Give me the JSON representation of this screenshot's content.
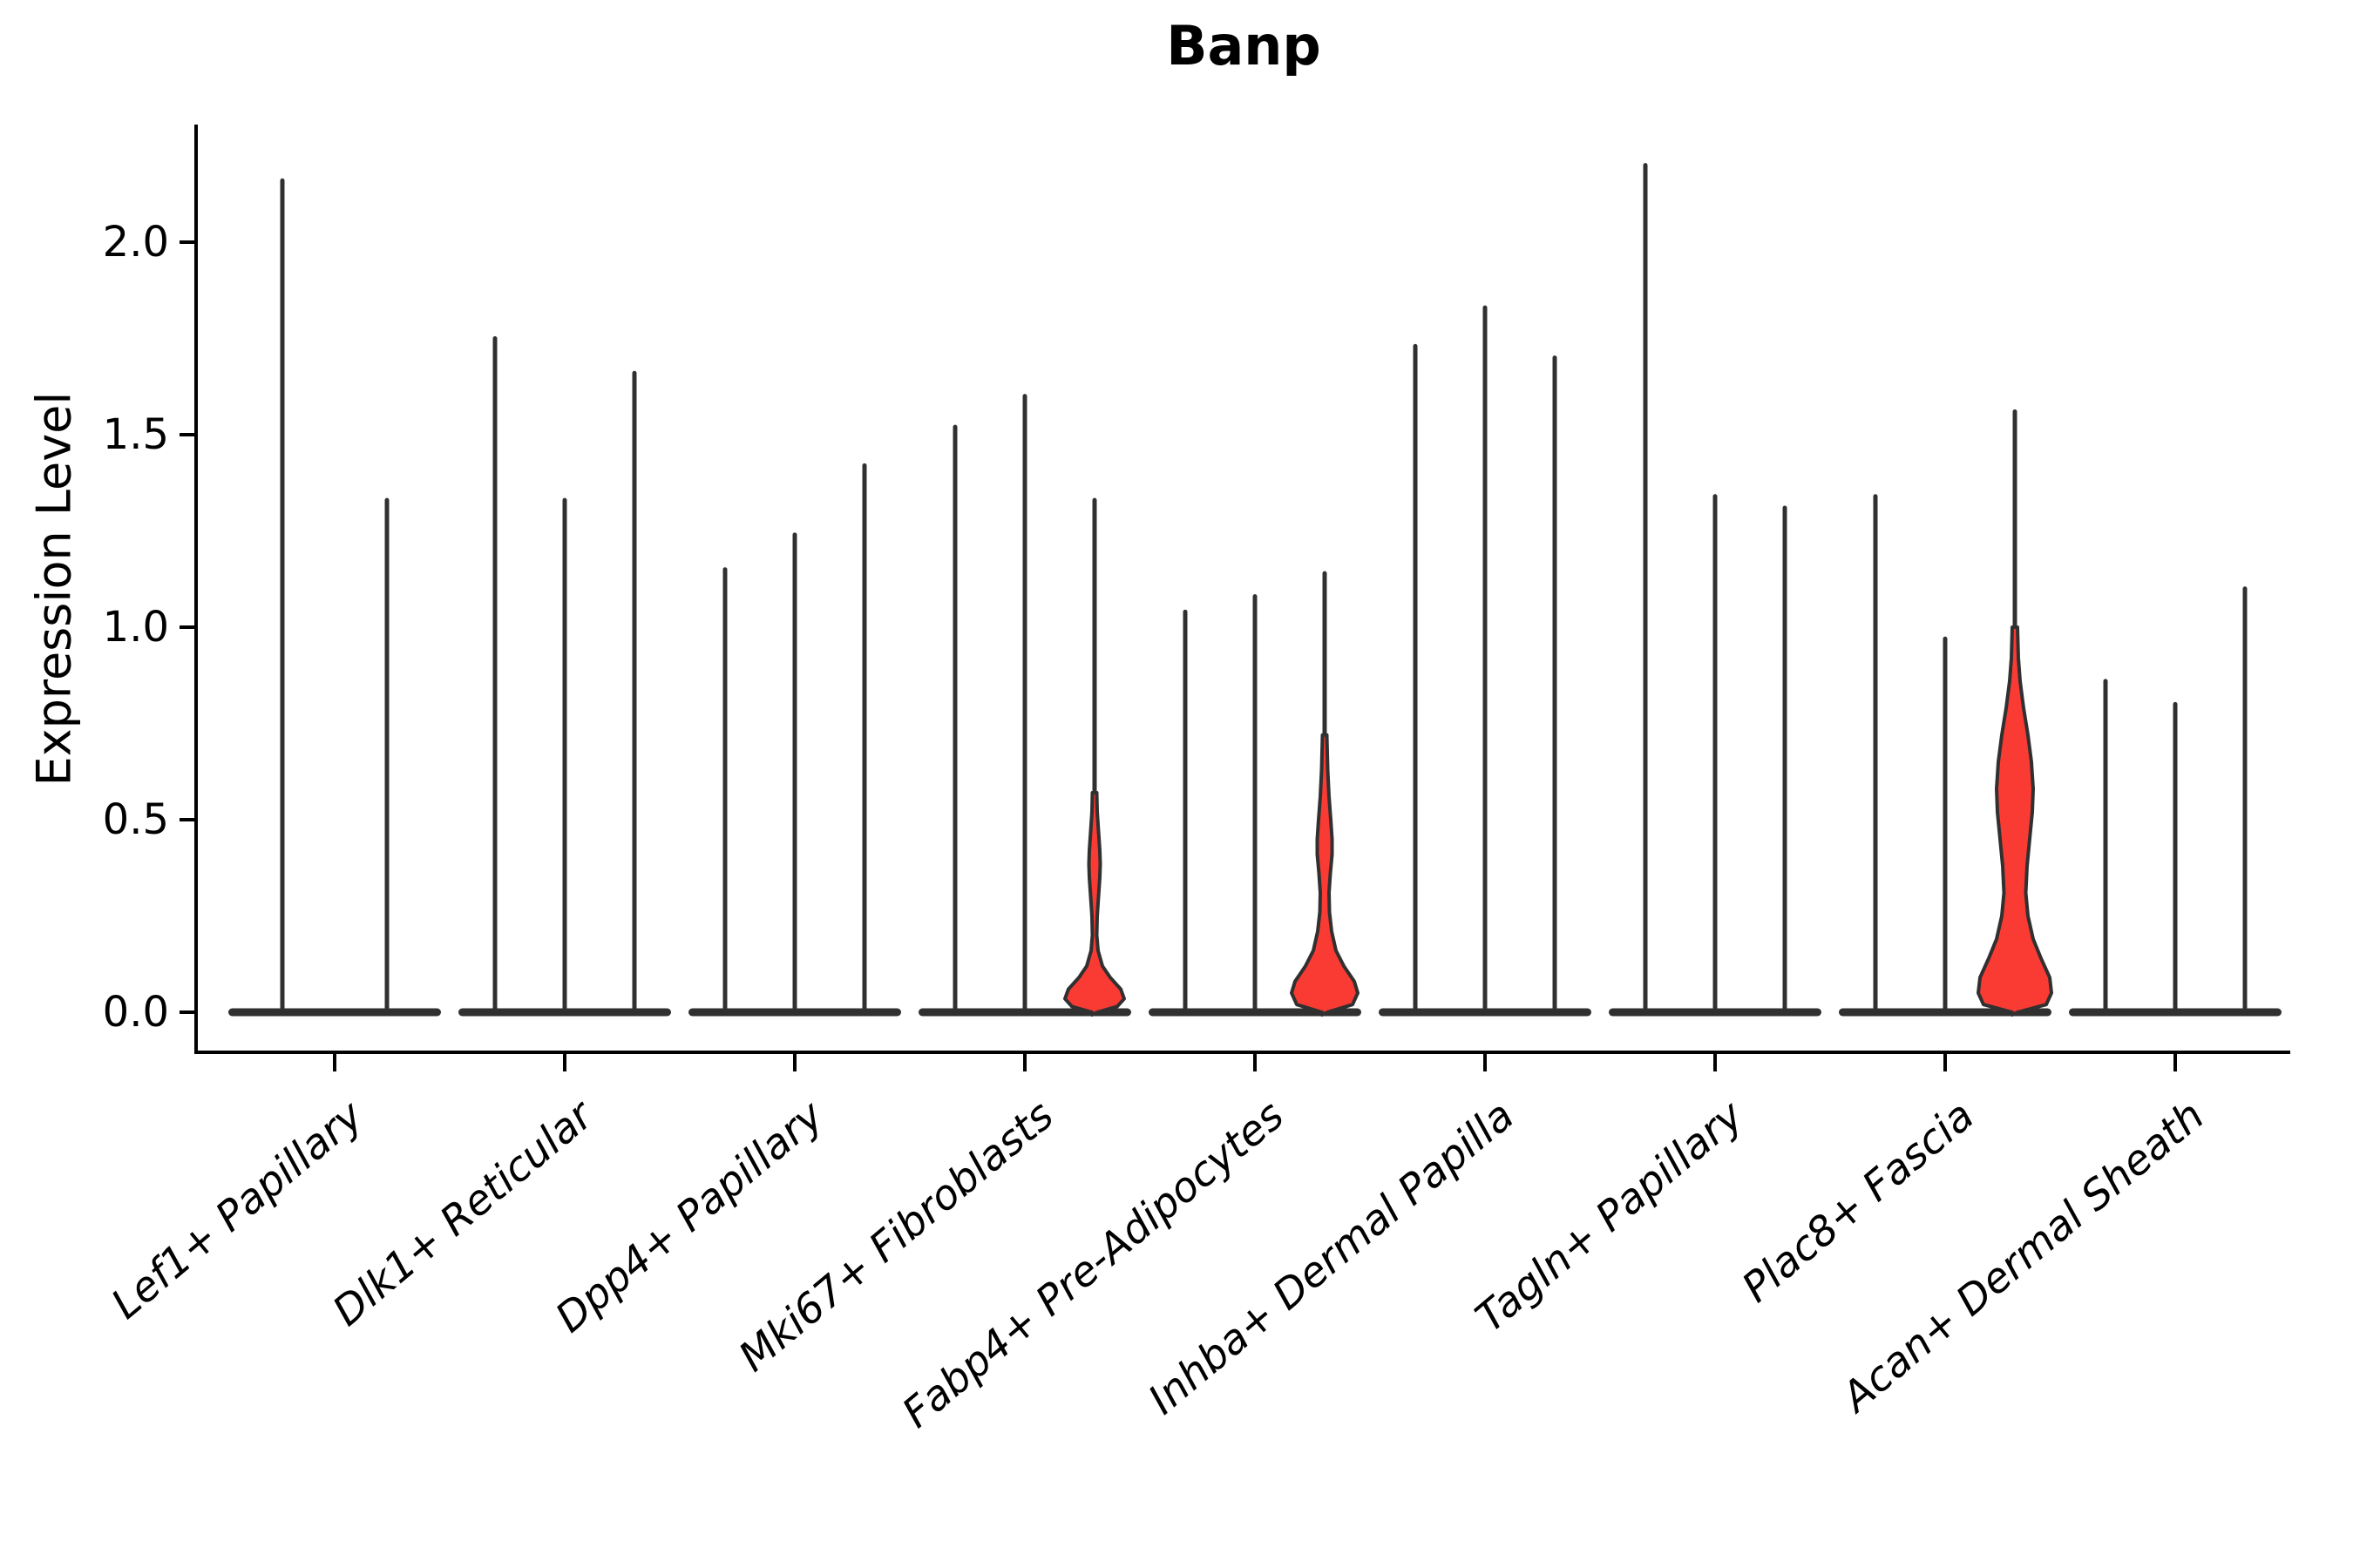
{
  "title": "Banp",
  "ylabel": "Expression Level",
  "colors": {
    "violin_fill": "#f93b34",
    "line": "#303030",
    "axis": "#000000",
    "background": "#ffffff"
  },
  "chart_data": {
    "type": "violin",
    "title": "Banp",
    "xlabel": "",
    "ylabel": "Expression Level",
    "ylim": [
      -0.1,
      2.31
    ],
    "yticks": [
      0.0,
      0.5,
      1.0,
      1.5,
      2.0
    ],
    "grid": false,
    "legend": "none",
    "categories": [
      "Lef1+ Papillary",
      "Dlk1+ Reticular",
      "Dpp4+ Papillary",
      "Mki67+ Fibroblasts",
      "Fabp4+ Pre-Adipocytes",
      "Inhba+ Dermal Papilla",
      "Tagln+ Papillary",
      "Plac8+ Fascia",
      "Acan+ Dermal Sheath"
    ],
    "groups": [
      {
        "label": "Lef1+ Papillary",
        "violins": [
          {
            "max": 2.16,
            "filled": false
          },
          {
            "max": 1.33,
            "filled": false
          }
        ]
      },
      {
        "label": "Dlk1+ Reticular",
        "violins": [
          {
            "max": 1.75,
            "filled": false
          },
          {
            "max": 1.33,
            "filled": false
          },
          {
            "max": 1.66,
            "filled": false
          }
        ]
      },
      {
        "label": "Dpp4+ Papillary",
        "violins": [
          {
            "max": 1.15,
            "filled": false
          },
          {
            "max": 1.24,
            "filled": false
          },
          {
            "max": 1.42,
            "filled": false
          }
        ]
      },
      {
        "label": "Mki67+ Fibroblasts",
        "violins": [
          {
            "max": 1.52,
            "filled": false
          },
          {
            "max": 1.6,
            "filled": false
          },
          {
            "max": 1.33,
            "filled": true,
            "profile": [
              [
                0,
                3
              ],
              [
                0.015,
                26
              ],
              [
                0.035,
                34
              ],
              [
                0.06,
                30
              ],
              [
                0.09,
                18
              ],
              [
                0.12,
                9
              ],
              [
                0.16,
                4
              ],
              [
                0.2,
                2.5
              ],
              [
                0.25,
                3
              ],
              [
                0.3,
                4.5
              ],
              [
                0.35,
                6
              ],
              [
                0.385,
                6.5
              ],
              [
                0.42,
                6
              ],
              [
                0.47,
                4.5
              ],
              [
                0.52,
                3
              ],
              [
                0.57,
                2.5
              ]
            ]
          }
        ]
      },
      {
        "label": "Fabp4+ Pre-Adipocytes",
        "violins": [
          {
            "max": 1.04,
            "filled": false
          },
          {
            "max": 1.08,
            "filled": false
          },
          {
            "max": 1.14,
            "filled": true,
            "profile": [
              [
                0,
                3
              ],
              [
                0.02,
                32
              ],
              [
                0.05,
                38
              ],
              [
                0.08,
                34
              ],
              [
                0.12,
                22
              ],
              [
                0.16,
                13
              ],
              [
                0.21,
                8
              ],
              [
                0.26,
                5.5
              ],
              [
                0.31,
                5
              ],
              [
                0.36,
                6.5
              ],
              [
                0.41,
                8.5
              ],
              [
                0.45,
                8.5
              ],
              [
                0.5,
                7
              ],
              [
                0.56,
                5
              ],
              [
                0.63,
                3.5
              ],
              [
                0.72,
                2.5
              ]
            ]
          }
        ]
      },
      {
        "label": "Inhba+ Dermal Papilla",
        "violins": [
          {
            "max": 1.73,
            "filled": false
          },
          {
            "max": 1.83,
            "filled": false
          },
          {
            "max": 1.7,
            "filled": false
          }
        ]
      },
      {
        "label": "Tagln+ Papillary",
        "violins": [
          {
            "max": 2.2,
            "filled": false
          },
          {
            "max": 1.34,
            "filled": false
          },
          {
            "max": 1.31,
            "filled": false
          }
        ]
      },
      {
        "label": "Plac8+ Fascia",
        "violins": [
          {
            "max": 1.34,
            "filled": false
          },
          {
            "max": 0.97,
            "filled": false
          },
          {
            "max": 1.56,
            "filled": true,
            "profile": [
              [
                0,
                3
              ],
              [
                0.02,
                36
              ],
              [
                0.05,
                42
              ],
              [
                0.09,
                40
              ],
              [
                0.14,
                30
              ],
              [
                0.19,
                21
              ],
              [
                0.25,
                15
              ],
              [
                0.31,
                12.5
              ],
              [
                0.38,
                14
              ],
              [
                0.45,
                17
              ],
              [
                0.52,
                20
              ],
              [
                0.58,
                21
              ],
              [
                0.65,
                19
              ],
              [
                0.72,
                15
              ],
              [
                0.79,
                10
              ],
              [
                0.86,
                6
              ],
              [
                0.92,
                4
              ],
              [
                1.0,
                3
              ]
            ]
          }
        ]
      },
      {
        "label": "Acan+ Dermal Sheath",
        "violins": [
          {
            "max": 0.86,
            "filled": false
          },
          {
            "max": 0.8,
            "filled": false
          },
          {
            "max": 1.1,
            "filled": false
          }
        ]
      }
    ]
  }
}
